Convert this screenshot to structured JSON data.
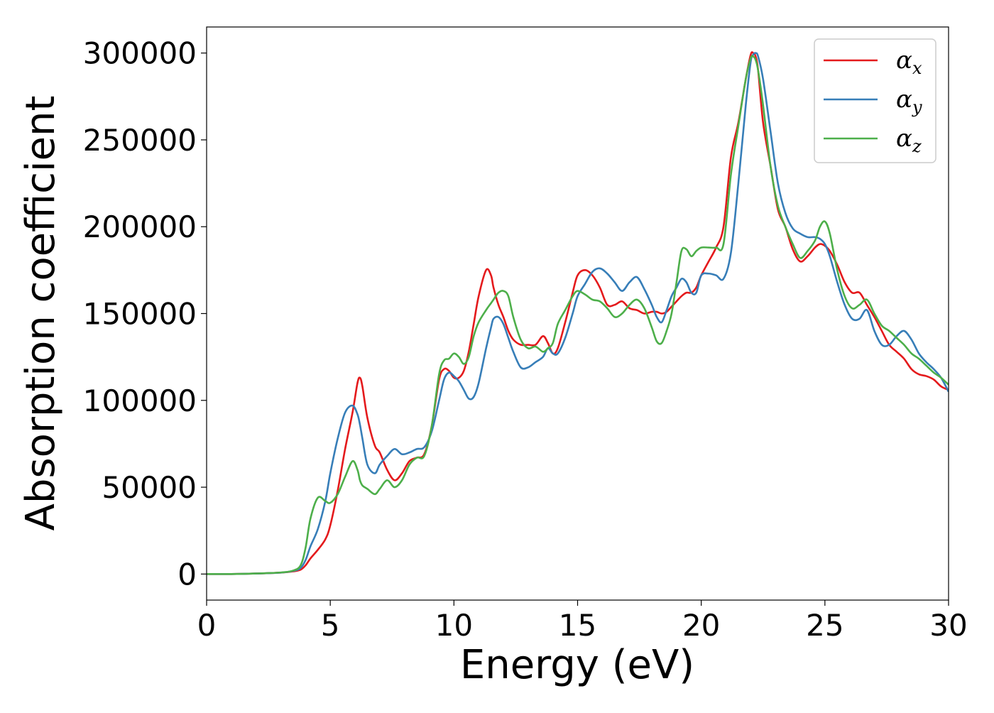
{
  "chart_data": {
    "type": "line",
    "title": "",
    "xlabel": "Energy (eV)",
    "ylabel": "Absorption coefficient",
    "xlim": [
      0,
      30
    ],
    "ylim": [
      -15000,
      315000
    ],
    "xticks": [
      0,
      5,
      10,
      15,
      20,
      25,
      30
    ],
    "yticks": [
      0,
      50000,
      100000,
      150000,
      200000,
      250000,
      300000
    ],
    "grid": false,
    "legend_position": "top-right",
    "x": [
      0,
      1,
      2,
      3,
      3.5,
      3.8,
      4.0,
      4.2,
      4.5,
      4.8,
      5.0,
      5.3,
      5.6,
      5.9,
      6.1,
      6.2,
      6.3,
      6.5,
      6.8,
      7.0,
      7.3,
      7.6,
      7.9,
      8.2,
      8.5,
      8.8,
      9.1,
      9.4,
      9.6,
      9.8,
      10.0,
      10.2,
      10.4,
      10.6,
      10.8,
      11.0,
      11.3,
      11.5,
      11.6,
      11.8,
      12.0,
      12.2,
      12.4,
      12.7,
      13.0,
      13.3,
      13.6,
      13.8,
      14.0,
      14.2,
      14.5,
      14.8,
      15.0,
      15.3,
      15.6,
      15.9,
      16.2,
      16.5,
      16.8,
      17.1,
      17.4,
      17.7,
      18.0,
      18.2,
      18.4,
      18.6,
      18.8,
      19.0,
      19.2,
      19.4,
      19.6,
      19.8,
      20.0,
      20.3,
      20.6,
      20.9,
      21.2,
      21.5,
      21.8,
      22.0,
      22.1,
      22.2,
      22.3,
      22.5,
      22.8,
      23.1,
      23.4,
      23.7,
      24.0,
      24.3,
      24.6,
      24.8,
      25.0,
      25.2,
      25.5,
      25.8,
      26.1,
      26.4,
      26.7,
      27.0,
      27.3,
      27.6,
      27.9,
      28.2,
      28.5,
      28.8,
      29.1,
      29.4,
      29.7,
      30.0
    ],
    "series": [
      {
        "name": "αx",
        "label_main": "α",
        "label_sub": "x",
        "color": "#e41a1c",
        "values": [
          0,
          0,
          300,
          800,
          1500,
          2500,
          5000,
          9000,
          14000,
          20000,
          28000,
          48000,
          72000,
          93000,
          110000,
          113000,
          108000,
          90000,
          74000,
          70000,
          60000,
          54000,
          58000,
          65000,
          67000,
          69000,
          85000,
          112000,
          118000,
          117000,
          113000,
          113000,
          117000,
          128000,
          144000,
          160000,
          175000,
          172000,
          165000,
          155000,
          148000,
          140000,
          135000,
          132000,
          132000,
          132000,
          137000,
          133000,
          127000,
          130000,
          145000,
          162000,
          172000,
          175000,
          172000,
          165000,
          155000,
          155000,
          157000,
          153000,
          152000,
          150000,
          151000,
          151000,
          150000,
          151000,
          154000,
          157000,
          160000,
          162000,
          162000,
          165000,
          172000,
          180000,
          188000,
          200000,
          240000,
          260000,
          285000,
          299000,
          300000,
          298000,
          290000,
          260000,
          235000,
          210000,
          200000,
          187000,
          180000,
          183000,
          188000,
          190000,
          189000,
          186000,
          178000,
          168000,
          162000,
          162000,
          155000,
          148000,
          140000,
          132000,
          128000,
          124000,
          118000,
          115000,
          114000,
          112000,
          108000,
          106000
        ]
      },
      {
        "name": "αy",
        "label_main": "α",
        "label_sub": "y",
        "color": "#377eb8",
        "values": [
          0,
          0,
          300,
          800,
          1800,
          3500,
          8000,
          16000,
          26000,
          42000,
          58000,
          78000,
          93000,
          97000,
          92000,
          86000,
          78000,
          63000,
          58000,
          63000,
          68000,
          72000,
          69000,
          70000,
          72000,
          73000,
          82000,
          100000,
          112000,
          116000,
          114000,
          111000,
          106000,
          101000,
          102000,
          110000,
          130000,
          142000,
          147000,
          148000,
          144000,
          136000,
          128000,
          119000,
          119000,
          122000,
          125000,
          130000,
          127000,
          127000,
          136000,
          150000,
          160000,
          167000,
          174000,
          176000,
          173000,
          168000,
          163000,
          168000,
          171000,
          164000,
          155000,
          148000,
          145000,
          152000,
          160000,
          165000,
          170000,
          168000,
          162000,
          162000,
          172000,
          173000,
          172000,
          170000,
          185000,
          225000,
          270000,
          295000,
          299000,
          300000,
          298000,
          285000,
          255000,
          225000,
          208000,
          199000,
          196000,
          194000,
          194000,
          193000,
          190000,
          183000,
          168000,
          155000,
          147000,
          147000,
          152000,
          140000,
          132000,
          132000,
          137000,
          140000,
          135000,
          127000,
          122000,
          118000,
          113000,
          105000
        ]
      },
      {
        "name": "αz",
        "label_main": "α",
        "label_sub": "z",
        "color": "#4daf4a",
        "values": [
          0,
          0,
          300,
          900,
          2000,
          5000,
          15000,
          32000,
          44000,
          42000,
          41000,
          46000,
          56000,
          65000,
          60000,
          54000,
          51000,
          49000,
          46000,
          49000,
          54000,
          50000,
          54000,
          63000,
          67000,
          68000,
          85000,
          115000,
          123000,
          124000,
          127000,
          125000,
          121000,
          125000,
          137000,
          145000,
          152000,
          156000,
          158000,
          162000,
          163000,
          160000,
          148000,
          135000,
          130000,
          131000,
          128000,
          130000,
          133000,
          144000,
          152000,
          160000,
          163000,
          161000,
          158000,
          157000,
          153000,
          148000,
          150000,
          155000,
          158000,
          153000,
          142000,
          134000,
          133000,
          140000,
          150000,
          168000,
          186000,
          187000,
          183000,
          186000,
          188000,
          188000,
          188000,
          190000,
          230000,
          258000,
          285000,
          297000,
          298000,
          296000,
          290000,
          270000,
          235000,
          212000,
          200000,
          190000,
          182000,
          186000,
          192000,
          200000,
          203000,
          196000,
          175000,
          160000,
          153000,
          155000,
          158000,
          150000,
          143000,
          140000,
          136000,
          132000,
          127000,
          124000,
          120000,
          116000,
          113000,
          109000
        ]
      }
    ]
  }
}
